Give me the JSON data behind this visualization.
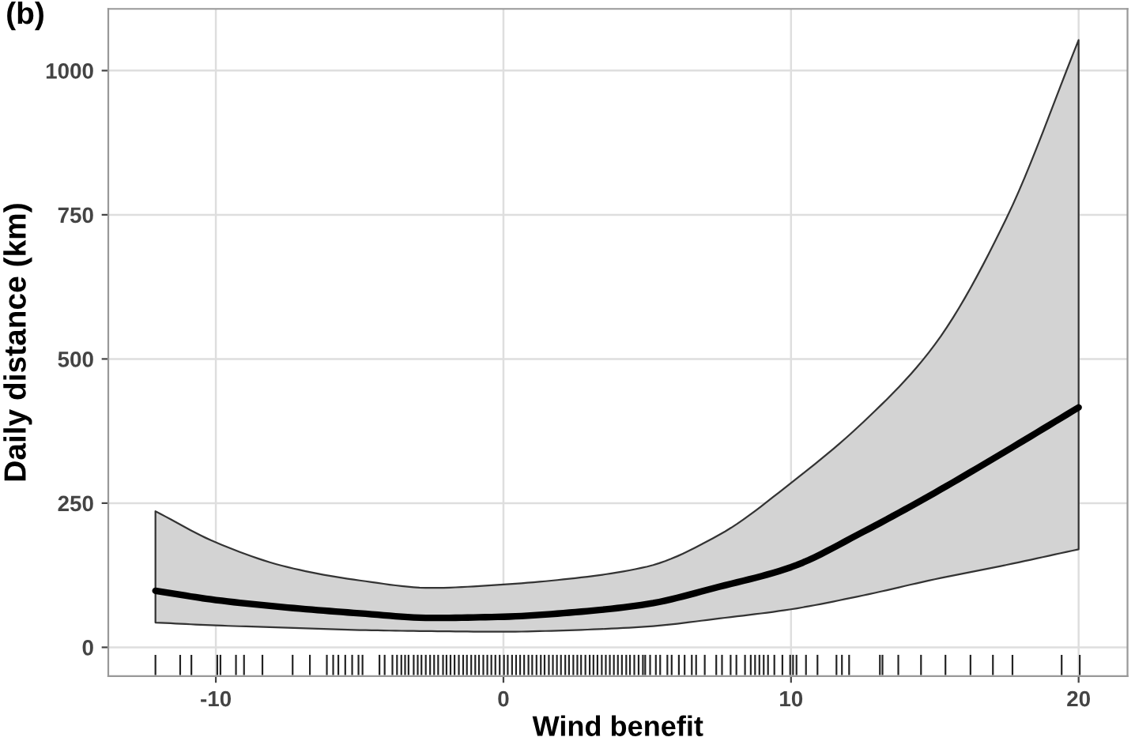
{
  "chart_data": {
    "type": "line",
    "title": "(b)",
    "xlabel": "Wind benefit",
    "ylabel": "Daily distance (km)",
    "xlim": [
      -13.74,
      21.7
    ],
    "ylim": [
      -50,
      1107
    ],
    "xticks": [
      -10,
      0,
      10,
      20
    ],
    "yticks": [
      0,
      250,
      500,
      750,
      1000
    ],
    "grid": true,
    "line_style": "solid",
    "series": [
      {
        "color": "#000000",
        "x": [
          -12.1,
          -10,
          -7.5,
          -5,
          -2.5,
          0,
          2.5,
          5,
          7.5,
          10,
          12.5,
          15,
          17.5,
          20
        ],
        "values": [
          98,
          82,
          69,
          59,
          51,
          53,
          61,
          75,
          105,
          139,
          200,
          268,
          341,
          416
        ],
        "lower": [
          43,
          38,
          34,
          30,
          28,
          27,
          30,
          36,
          50,
          66,
          90,
          118,
          143,
          170
        ],
        "upper": [
          236,
          182,
          139,
          116,
          103,
          109,
          120,
          140,
          195,
          285,
          390,
          525,
          745,
          1053
        ]
      },
      {
        "type": "bar",
        "color": "#222222",
        "base": [
          -48,
          -48,
          -48,
          -48,
          -48,
          -48,
          -48,
          -48,
          -48,
          -48,
          -48,
          -48,
          -48,
          -48,
          -48,
          -48,
          -48,
          -48,
          -48,
          -48,
          -48,
          -48,
          -48,
          -48,
          -48,
          -48,
          -48,
          -48,
          -48,
          -48,
          -48,
          -48,
          -48,
          -48,
          -48,
          -48,
          -48,
          -48,
          -48,
          -48,
          -48,
          -48,
          -48,
          -48,
          -48,
          -48,
          -48,
          -48,
          -48,
          -48,
          -48,
          -48,
          -48,
          -48,
          -48,
          -48,
          -48,
          -48,
          -48,
          -48,
          -48,
          -48,
          -48,
          -48,
          -48,
          -48,
          -48,
          -48,
          -48,
          -48,
          -48,
          -48,
          -48,
          -48,
          -48,
          -48,
          -48,
          -48,
          -48,
          -48,
          -48,
          -48,
          -48,
          -48,
          -48,
          -48,
          -48,
          -48,
          -48,
          -48,
          -48,
          -48,
          -48,
          -48,
          -48,
          -48,
          -48,
          -48,
          -48,
          -48,
          -48,
          -48,
          -48,
          -48,
          -48,
          -48,
          -48,
          -48,
          -48,
          -48,
          -48,
          -48,
          -48,
          -48,
          -48,
          -48,
          -48,
          -48,
          -48,
          -48,
          -48,
          -48
        ],
        "x": [
          -12.1,
          -11.24,
          -10.85,
          -9.95,
          -9.84,
          -9.3,
          -9.02,
          -8.38,
          -7.33,
          -6.73,
          -6.14,
          -5.92,
          -5.74,
          -5.5,
          -5.26,
          -5.04,
          -4.9,
          -4.31,
          -4.13,
          -3.86,
          -3.7,
          -3.55,
          -3.42,
          -3.3,
          -3.12,
          -2.98,
          -2.85,
          -2.7,
          -2.55,
          -2.41,
          -2.27,
          -2.1,
          -1.98,
          -1.84,
          -1.7,
          -1.55,
          -1.4,
          -1.27,
          -1.12,
          -0.98,
          -0.85,
          -0.7,
          -0.56,
          -0.42,
          -0.28,
          -0.13,
          0.02,
          0.15,
          0.3,
          0.44,
          0.58,
          0.72,
          0.87,
          1.0,
          1.15,
          1.3,
          1.43,
          1.58,
          1.72,
          1.86,
          2.0,
          2.15,
          2.28,
          2.43,
          2.57,
          2.7,
          2.85,
          3.0,
          3.13,
          3.27,
          3.42,
          3.56,
          3.7,
          3.84,
          3.98,
          4.12,
          4.27,
          4.4,
          4.55,
          4.7,
          4.85,
          4.93,
          5.1,
          5.3,
          5.45,
          5.7,
          5.85,
          6.1,
          6.3,
          6.55,
          6.7,
          7.0,
          7.4,
          7.6,
          7.9,
          8.1,
          8.4,
          8.6,
          8.75,
          8.9,
          9.05,
          9.2,
          9.42,
          9.7,
          9.97,
          10.07,
          10.19,
          10.52,
          10.92,
          11.58,
          11.77,
          12.02,
          13.09,
          13.18,
          13.73,
          14.52,
          15.37,
          16.24,
          17.02,
          17.7,
          19.41,
          20.04
        ],
        "values": [
          35,
          35,
          35,
          35,
          35,
          35,
          35,
          35,
          35,
          35,
          35,
          35,
          35,
          35,
          35,
          35,
          35,
          35,
          35,
          35,
          35,
          35,
          35,
          35,
          35,
          35,
          35,
          35,
          35,
          35,
          35,
          35,
          35,
          35,
          35,
          35,
          35,
          35,
          35,
          35,
          35,
          35,
          35,
          35,
          35,
          35,
          35,
          35,
          35,
          35,
          35,
          35,
          35,
          35,
          35,
          35,
          35,
          35,
          35,
          35,
          35,
          35,
          35,
          35,
          35,
          35,
          35,
          35,
          35,
          35,
          35,
          35,
          35,
          35,
          35,
          35,
          35,
          35,
          35,
          35,
          35,
          35,
          35,
          35,
          35,
          35,
          35,
          35,
          35,
          35,
          35,
          35,
          35,
          35,
          35,
          35,
          35,
          35,
          35,
          35,
          35,
          35,
          35,
          35,
          35,
          35,
          35,
          35,
          35,
          35,
          35,
          35,
          35,
          35,
          35,
          35,
          35,
          35,
          35,
          35,
          35,
          35
        ]
      }
    ]
  }
}
